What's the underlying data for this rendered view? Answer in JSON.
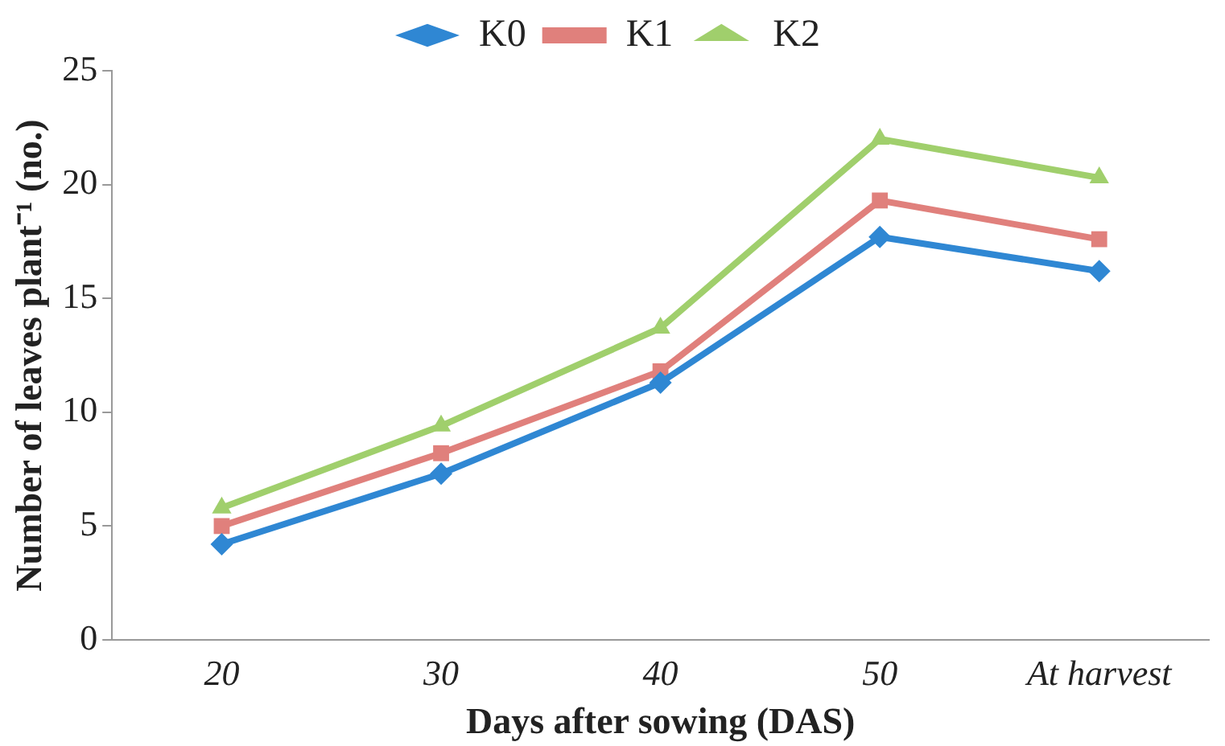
{
  "chart_data": {
    "type": "line",
    "xlabel": "Days after sowing (DAS)",
    "ylabel": "Number of leaves plant⁻¹ (no.)",
    "categories": [
      "20",
      "30",
      "40",
      "50",
      "At harvest"
    ],
    "series": [
      {
        "name": "K0",
        "color": "#2f87d3",
        "marker": "diamond",
        "values": [
          4.2,
          7.3,
          11.3,
          17.7,
          16.2
        ]
      },
      {
        "name": "K1",
        "color": "#e0807c",
        "marker": "square",
        "values": [
          5.0,
          8.2,
          11.8,
          19.3,
          17.6
        ]
      },
      {
        "name": "K2",
        "color": "#a0cf6c",
        "marker": "triangle",
        "values": [
          5.8,
          9.4,
          13.7,
          22.0,
          20.3
        ]
      }
    ],
    "ylim": [
      0,
      25
    ],
    "yticks": [
      0,
      5,
      10,
      15,
      20,
      25
    ],
    "grid": false,
    "legend": "top",
    "line_style": "solid"
  }
}
